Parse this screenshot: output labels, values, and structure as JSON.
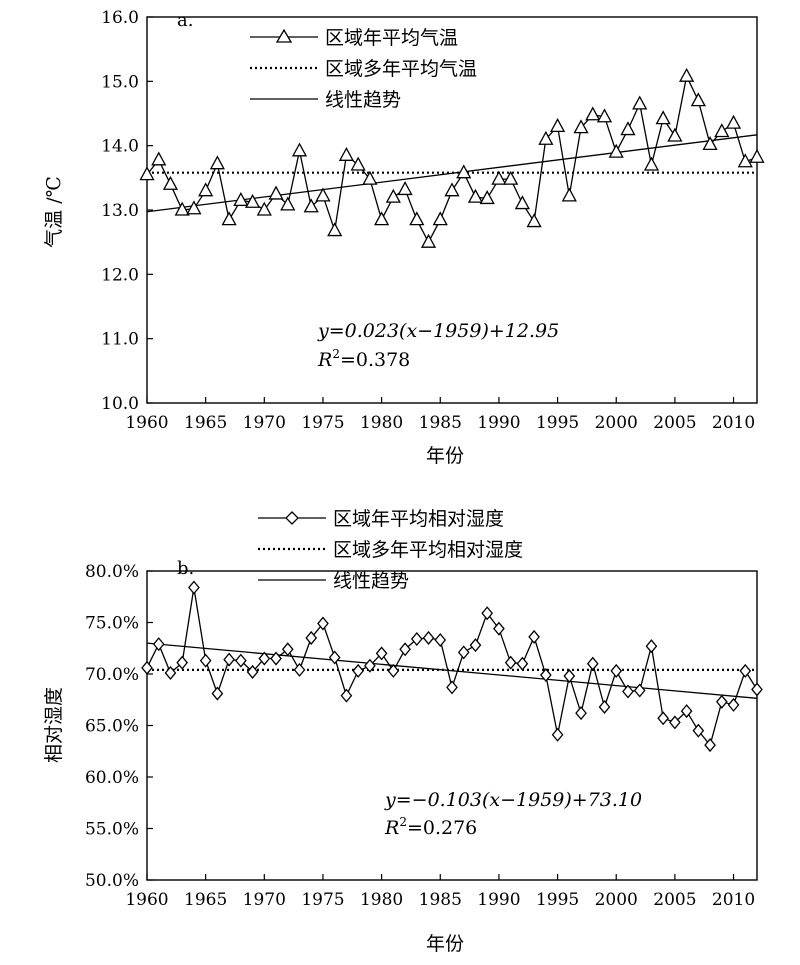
{
  "chart_data": [
    {
      "panel_label": "a.",
      "type": "line",
      "xlabel": "年份",
      "ylabel": "气温 /℃",
      "xlim": [
        1960,
        2012
      ],
      "ylim": [
        10.0,
        16.0
      ],
      "x_ticks": [
        1960,
        1965,
        1970,
        1975,
        1980,
        1985,
        1990,
        1995,
        2000,
        2005,
        2010
      ],
      "y_ticks": [
        10.0,
        11.0,
        12.0,
        13.0,
        14.0,
        15.0,
        16.0
      ],
      "y_tick_labels": [
        "10.0",
        "11.0",
        "12.0",
        "13.0",
        "14.0",
        "15.0",
        "16.0"
      ],
      "legend": [
        {
          "label": "区域年平均气温",
          "style": "line-triangle"
        },
        {
          "label": "区域多年平均气温",
          "style": "dotted"
        },
        {
          "label": "线性趋势",
          "style": "solid"
        }
      ],
      "annotation": {
        "equation": "y=0.023(x−1959)+12.95",
        "r2": "R2=0.378",
        "r2_value": "0.378"
      },
      "x": [
        1960,
        1961,
        1962,
        1963,
        1964,
        1965,
        1966,
        1967,
        1968,
        1969,
        1970,
        1971,
        1972,
        1973,
        1974,
        1975,
        1976,
        1977,
        1978,
        1979,
        1980,
        1981,
        1982,
        1983,
        1984,
        1985,
        1986,
        1987,
        1988,
        1989,
        1990,
        1991,
        1992,
        1993,
        1994,
        1995,
        1996,
        1997,
        1998,
        1999,
        2000,
        2001,
        2002,
        2003,
        2004,
        2005,
        2006,
        2007,
        2008,
        2009,
        2010,
        2011,
        2012
      ],
      "series": [
        {
          "name": "区域年平均气温",
          "values": [
            13.55,
            13.78,
            13.4,
            13.0,
            13.02,
            13.3,
            13.72,
            12.85,
            13.15,
            13.12,
            13.0,
            13.25,
            13.08,
            13.92,
            13.05,
            13.22,
            12.68,
            13.85,
            13.7,
            13.48,
            12.85,
            13.2,
            13.32,
            12.85,
            12.5,
            12.85,
            13.3,
            13.58,
            13.2,
            13.18,
            13.48,
            13.48,
            13.1,
            12.82,
            14.1,
            14.3,
            13.22,
            14.28,
            14.48,
            14.45,
            13.9,
            14.25,
            14.65,
            13.7,
            14.42,
            14.15,
            15.08,
            14.7,
            14.02,
            14.22,
            14.35,
            13.75,
            13.82
          ]
        },
        {
          "name": "区域多年平均气温",
          "values_constant": 13.58
        },
        {
          "name": "线性趋势",
          "slope": 0.023,
          "intercept": 12.95,
          "base_year": 1959
        }
      ]
    },
    {
      "panel_label": "b.",
      "type": "line",
      "xlabel": "年份",
      "ylabel": "相对湿度",
      "xlim": [
        1960,
        2012
      ],
      "ylim": [
        50.0,
        80.0
      ],
      "x_ticks": [
        1960,
        1965,
        1970,
        1975,
        1980,
        1985,
        1990,
        1995,
        2000,
        2005,
        2010
      ],
      "y_ticks": [
        50.0,
        55.0,
        60.0,
        65.0,
        70.0,
        75.0,
        80.0
      ],
      "y_tick_labels": [
        "50.0%",
        "55.0%",
        "60.0%",
        "65.0%",
        "70.0%",
        "75.0%",
        "80.0%"
      ],
      "legend": [
        {
          "label": "区域年平均相对湿度",
          "style": "line-diamond"
        },
        {
          "label": "区域多年平均相对湿度",
          "style": "dotted"
        },
        {
          "label": "线性趋势",
          "style": "solid"
        }
      ],
      "annotation": {
        "equation": "y=−0.103(x−1959)+73.10",
        "r2": "R2=0.276",
        "r2_value": "0.276"
      },
      "x": [
        1960,
        1961,
        1962,
        1963,
        1964,
        1965,
        1966,
        1967,
        1968,
        1969,
        1970,
        1971,
        1972,
        1973,
        1974,
        1975,
        1976,
        1977,
        1978,
        1979,
        1980,
        1981,
        1982,
        1983,
        1984,
        1985,
        1986,
        1987,
        1988,
        1989,
        1990,
        1991,
        1992,
        1993,
        1994,
        1995,
        1996,
        1997,
        1998,
        1999,
        2000,
        2001,
        2002,
        2003,
        2004,
        2005,
        2006,
        2007,
        2008,
        2009,
        2010,
        2011,
        2012
      ],
      "series": [
        {
          "name": "区域年平均相对湿度",
          "values": [
            70.6,
            72.9,
            70.1,
            71.1,
            78.4,
            71.3,
            68.1,
            71.4,
            71.3,
            70.2,
            71.5,
            71.5,
            72.4,
            70.4,
            73.5,
            74.9,
            71.6,
            67.9,
            70.3,
            70.8,
            72.0,
            70.3,
            72.4,
            73.4,
            73.5,
            73.3,
            68.7,
            72.1,
            72.8,
            75.9,
            74.4,
            71.1,
            71.0,
            73.6,
            69.9,
            64.1,
            69.8,
            66.2,
            71.0,
            66.8,
            70.3,
            68.3,
            68.4,
            72.7,
            65.7,
            65.3,
            66.4,
            64.5,
            63.1,
            67.3,
            67.0,
            70.3,
            68.5
          ]
        },
        {
          "name": "区域多年平均相对湿度",
          "values_constant": 70.4
        },
        {
          "name": "线性趋势",
          "slope": -0.103,
          "intercept": 73.1,
          "base_year": 1959
        }
      ]
    }
  ]
}
